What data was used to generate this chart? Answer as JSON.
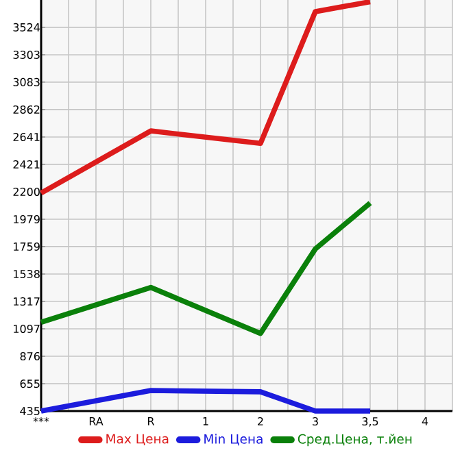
{
  "chart_data": {
    "type": "line",
    "categories": [
      "***",
      "RA",
      "R",
      "1",
      "2",
      "3",
      "3,5",
      "4"
    ],
    "series": [
      {
        "name": "Max Цена",
        "color": "#dd1c1c",
        "values": [
          2190,
          null,
          2690,
          null,
          2590,
          3650,
          3730,
          null
        ]
      },
      {
        "name": "Min Цена",
        "color": "#1c1cdd",
        "values": [
          435,
          null,
          600,
          null,
          590,
          435,
          435,
          null
        ]
      },
      {
        "name": "Сред.Цена, т.йен",
        "color": "#0a800a",
        "values": [
          1150,
          null,
          1430,
          null,
          1060,
          1740,
          2110,
          null
        ]
      }
    ],
    "ylim": [
      435,
      3744
    ],
    "yticks": [
      435,
      655,
      876,
      1097,
      1317,
      1538,
      1759,
      1979,
      2200,
      2421,
      2641,
      2862,
      3083,
      3303,
      3524
    ],
    "grid": true,
    "legend": "bottom",
    "marker": "none",
    "line_style": "solid"
  }
}
